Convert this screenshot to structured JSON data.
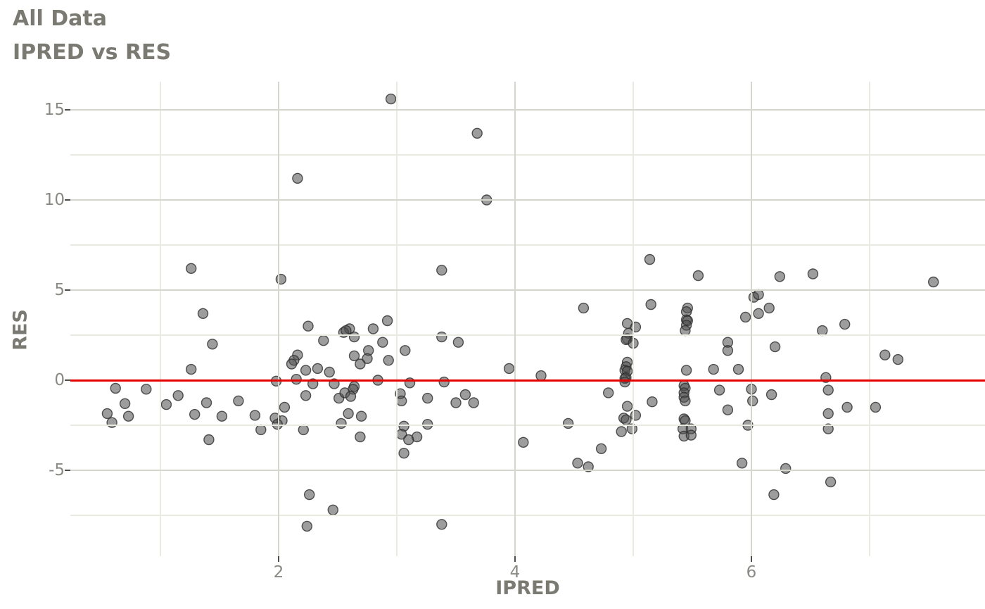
{
  "title": "All Data",
  "subtitle": "IPRED vs RES",
  "colors": {
    "background": "#ffffff",
    "title_text": "#7b7a72",
    "tick_label_text": "#8a8a85",
    "tick_mark": "#4d4d4d",
    "grid_major": "#d6d6cc",
    "grid_minor": "#eaeae1",
    "ref_line": "#e60000",
    "point_fill": "#4d4d4d",
    "point_stroke": "#2e2e2e"
  },
  "chart_data": {
    "type": "scatter",
    "title": "All Data",
    "subtitle": "IPRED vs RES",
    "xlabel": "IPRED",
    "ylabel": "RES",
    "xlim": [
      0.24,
      7.98
    ],
    "ylim": [
      -9.77,
      16.6
    ],
    "x_ticks": [
      2,
      4,
      6
    ],
    "y_ticks": [
      15,
      10,
      5,
      0,
      -5
    ],
    "x_minor": [
      1,
      3,
      5,
      7
    ],
    "y_minor": [
      12.5,
      7.5,
      2.5,
      -2.5,
      -7.5
    ],
    "grid": "on",
    "legend": "none",
    "ref_line_y": 0,
    "points": [
      [
        2.16,
        11.2
      ],
      [
        1.26,
        6.2
      ],
      [
        2.02,
        5.6
      ],
      [
        1.36,
        3.7
      ],
      [
        2.95,
        15.6
      ],
      [
        3.68,
        13.7
      ],
      [
        3.76,
        10.0
      ],
      [
        3.38,
        6.1
      ],
      [
        5.14,
        6.7
      ],
      [
        5.55,
        5.8
      ],
      [
        4.58,
        4.0
      ],
      [
        5.15,
        4.2
      ],
      [
        5.95,
        3.5
      ],
      [
        5.46,
        4.0
      ],
      [
        5.45,
        3.8
      ],
      [
        5.45,
        3.35
      ],
      [
        5.46,
        3.3
      ],
      [
        5.45,
        3.05
      ],
      [
        5.44,
        2.75
      ],
      [
        6.24,
        5.75
      ],
      [
        6.52,
        5.9
      ],
      [
        7.54,
        5.45
      ],
      [
        6.02,
        4.6
      ],
      [
        6.06,
        4.75
      ],
      [
        6.15,
        4.0
      ],
      [
        6.06,
        3.7
      ],
      [
        1.44,
        2.0
      ],
      [
        1.26,
        0.6
      ],
      [
        1.98,
        -0.05
      ],
      [
        0.62,
        -0.45
      ],
      [
        0.88,
        -0.5
      ],
      [
        1.15,
        -0.85
      ],
      [
        1.05,
        -1.35
      ],
      [
        0.7,
        -1.3
      ],
      [
        1.39,
        -1.25
      ],
      [
        1.66,
        -1.15
      ],
      [
        1.29,
        -1.9
      ],
      [
        1.52,
        -2.0
      ],
      [
        0.55,
        -1.85
      ],
      [
        0.73,
        -2.0
      ],
      [
        0.59,
        -2.35
      ],
      [
        1.8,
        -1.95
      ],
      [
        1.85,
        -2.75
      ],
      [
        1.41,
        -3.3
      ],
      [
        2.16,
        1.4
      ],
      [
        2.13,
        1.1
      ],
      [
        2.11,
        0.9
      ],
      [
        2.15,
        0.05
      ],
      [
        2.05,
        -1.5
      ],
      [
        1.97,
        -2.1
      ],
      [
        2.03,
        -2.25
      ],
      [
        1.99,
        -2.45
      ],
      [
        2.25,
        3.0
      ],
      [
        2.6,
        2.85
      ],
      [
        2.55,
        2.65
      ],
      [
        2.57,
        2.75
      ],
      [
        2.8,
        2.85
      ],
      [
        2.92,
        3.3
      ],
      [
        2.38,
        2.2
      ],
      [
        2.64,
        2.4
      ],
      [
        2.88,
        2.1
      ],
      [
        3.07,
        1.65
      ],
      [
        2.76,
        1.65
      ],
      [
        2.64,
        1.35
      ],
      [
        2.75,
        1.2
      ],
      [
        2.69,
        0.9
      ],
      [
        2.93,
        1.1
      ],
      [
        3.38,
        2.4
      ],
      [
        3.52,
        2.1
      ],
      [
        3.95,
        0.65
      ],
      [
        2.23,
        0.55
      ],
      [
        2.33,
        0.65
      ],
      [
        2.43,
        0.45
      ],
      [
        2.84,
        0.0
      ],
      [
        2.29,
        -0.2
      ],
      [
        2.47,
        -0.2
      ],
      [
        2.64,
        -0.35
      ],
      [
        2.63,
        -0.5
      ],
      [
        3.11,
        -0.15
      ],
      [
        3.4,
        -0.1
      ],
      [
        2.23,
        -0.85
      ],
      [
        2.51,
        -1.0
      ],
      [
        2.56,
        -0.7
      ],
      [
        2.61,
        -0.9
      ],
      [
        3.03,
        -0.75
      ],
      [
        3.04,
        -1.15
      ],
      [
        3.26,
        -1.0
      ],
      [
        3.5,
        -1.25
      ],
      [
        3.65,
        -1.25
      ],
      [
        3.58,
        -0.8
      ],
      [
        2.59,
        -1.85
      ],
      [
        2.7,
        -2.0
      ],
      [
        2.53,
        -2.4
      ],
      [
        3.06,
        -2.55
      ],
      [
        3.26,
        -2.45
      ],
      [
        3.04,
        -3.0
      ],
      [
        3.1,
        -3.3
      ],
      [
        3.17,
        -3.15
      ],
      [
        2.69,
        -3.15
      ],
      [
        2.21,
        -2.75
      ],
      [
        3.06,
        -4.05
      ],
      [
        4.07,
        -3.45
      ],
      [
        4.22,
        0.25
      ],
      [
        4.45,
        -2.4
      ],
      [
        4.53,
        -4.6
      ],
      [
        4.62,
        -4.8
      ],
      [
        2.26,
        -6.35
      ],
      [
        2.46,
        -7.2
      ],
      [
        2.24,
        -8.1
      ],
      [
        3.38,
        -8.0
      ],
      [
        4.95,
        3.15
      ],
      [
        5.02,
        2.95
      ],
      [
        4.96,
        2.6
      ],
      [
        4.95,
        2.3
      ],
      [
        4.94,
        2.25
      ],
      [
        5.0,
        2.05
      ],
      [
        4.95,
        1.0
      ],
      [
        4.94,
        0.75
      ],
      [
        4.93,
        0.55
      ],
      [
        4.95,
        0.5
      ],
      [
        4.94,
        0.15
      ],
      [
        4.93,
        0.1
      ],
      [
        4.93,
        -0.1
      ],
      [
        4.79,
        -0.7
      ],
      [
        5.16,
        -1.2
      ],
      [
        4.95,
        -1.45
      ],
      [
        5.02,
        -1.95
      ],
      [
        4.92,
        -2.1
      ],
      [
        4.94,
        -2.2
      ],
      [
        4.9,
        -2.85
      ],
      [
        4.99,
        -2.7
      ],
      [
        5.8,
        2.1
      ],
      [
        5.8,
        1.65
      ],
      [
        5.45,
        0.55
      ],
      [
        5.68,
        0.6
      ],
      [
        5.89,
        0.6
      ],
      [
        5.73,
        -0.55
      ],
      [
        6.0,
        -0.5
      ],
      [
        6.01,
        -1.15
      ],
      [
        5.43,
        -0.3
      ],
      [
        5.44,
        -0.45
      ],
      [
        5.43,
        -0.7
      ],
      [
        5.43,
        -0.95
      ],
      [
        5.44,
        -1.15
      ],
      [
        5.8,
        -1.65
      ],
      [
        5.43,
        -2.15
      ],
      [
        5.44,
        -2.25
      ],
      [
        5.42,
        -2.7
      ],
      [
        5.49,
        -2.7
      ],
      [
        5.43,
        -3.1
      ],
      [
        5.49,
        -3.05
      ],
      [
        4.73,
        -3.8
      ],
      [
        5.92,
        -4.6
      ],
      [
        5.97,
        -2.5
      ],
      [
        6.79,
        3.1
      ],
      [
        6.6,
        2.75
      ],
      [
        6.2,
        1.85
      ],
      [
        7.13,
        1.4
      ],
      [
        7.24,
        1.15
      ],
      [
        6.63,
        0.15
      ],
      [
        6.65,
        -0.55
      ],
      [
        6.17,
        -0.8
      ],
      [
        6.81,
        -1.5
      ],
      [
        7.05,
        -1.5
      ],
      [
        6.65,
        -1.85
      ],
      [
        6.65,
        -2.7
      ],
      [
        6.29,
        -4.9
      ],
      [
        6.67,
        -5.65
      ],
      [
        6.19,
        -6.35
      ]
    ]
  }
}
